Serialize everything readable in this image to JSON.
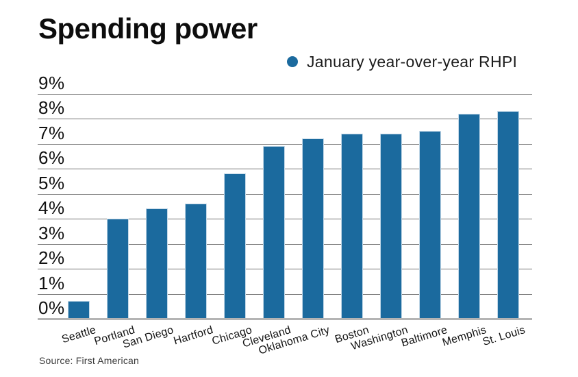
{
  "title": "Spending power",
  "legend": {
    "label": "January year-over-year RHPI",
    "dot_color": "#1b6a9e"
  },
  "source": "Source: First American",
  "colors": {
    "bar": "#1b6a9e",
    "gridline": "#707070",
    "baseline": "#b4b4b4",
    "background": "#ffffff",
    "text": "#111111"
  },
  "chart_data": {
    "type": "bar",
    "title": "Spending power",
    "series_name": "January year-over-year RHPI",
    "categories": [
      "Seattle",
      "Portland",
      "San Diego",
      "Hartford",
      "Chicago",
      "Cleveland",
      "Oklahoma City",
      "Boston",
      "Washington",
      "Baltimore",
      "Memphis",
      "St. Louis"
    ],
    "values": [
      0.7,
      4.0,
      4.4,
      4.6,
      5.8,
      6.9,
      7.2,
      7.4,
      7.4,
      7.5,
      8.2,
      8.3
    ],
    "unit": "%",
    "xlabel": "",
    "ylabel": "",
    "ylim": [
      0,
      9
    ],
    "yticks": [
      "0%",
      "1%",
      "2%",
      "3%",
      "4%",
      "5%",
      "6%",
      "7%",
      "8%",
      "9%"
    ],
    "grid": true,
    "legend_position": "top-right",
    "bar_color": "#1b6a9e",
    "source": "Source: First American"
  }
}
